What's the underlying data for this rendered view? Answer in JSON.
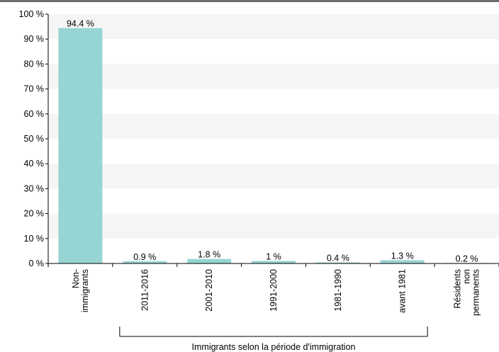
{
  "chart_data": {
    "type": "bar",
    "categories": [
      [
        "Non-",
        "immigrants"
      ],
      [
        "2011-2016"
      ],
      [
        "2001-2010"
      ],
      [
        "1991-2000"
      ],
      [
        "1981-1990"
      ],
      [
        "avant 1981"
      ],
      [
        "Résidents",
        "non",
        "permanents"
      ]
    ],
    "values": [
      94.4,
      0.9,
      1.8,
      1,
      0.4,
      1.3,
      0.2
    ],
    "value_labels": [
      "94.4 %",
      "0.9 %",
      "1.8 %",
      "1 %",
      "0.4 %",
      "1.3 %",
      "0.2 %"
    ],
    "y_ticks": [
      0,
      10,
      20,
      30,
      40,
      50,
      60,
      70,
      80,
      90,
      100
    ],
    "y_tick_labels": [
      "0 %",
      "10 %",
      "20 %",
      "30 %",
      "40 %",
      "50 %",
      "60 %",
      "70 %",
      "80 %",
      "90 %",
      "100 %"
    ],
    "ylim": [
      0,
      100
    ],
    "group_label": "Immigrants selon la période d'immigration",
    "group_span": [
      1,
      5
    ],
    "bar_color": "#97d4d4",
    "band_color": "#f5f5f5"
  }
}
